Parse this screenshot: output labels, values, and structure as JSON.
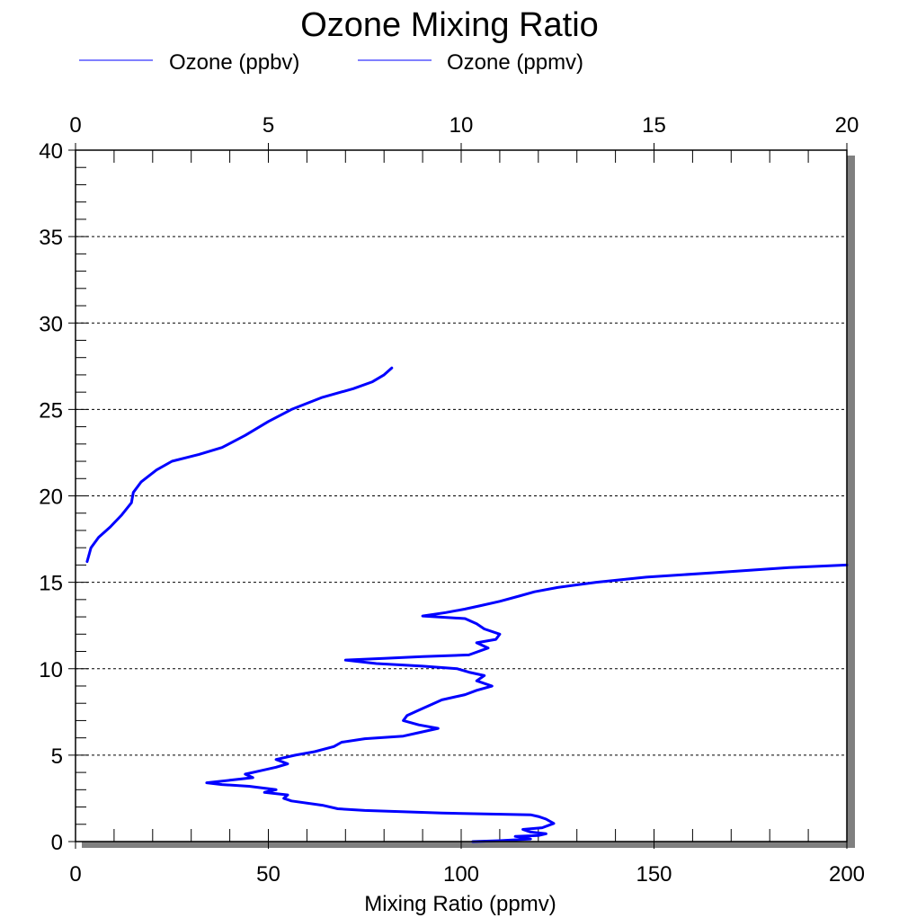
{
  "chart_data": {
    "type": "line",
    "title": "Ozone Mixing Ratio",
    "xlabel": "Mixing Ratio (ppmv)",
    "ylabel": "",
    "x_bottom": {
      "lim": [
        0,
        200
      ],
      "ticks": [
        0,
        50,
        100,
        150,
        200
      ],
      "tick_labels": [
        "0",
        "50",
        "100",
        "150",
        "200"
      ]
    },
    "x_top": {
      "lim": [
        0,
        20
      ],
      "ticks": [
        0,
        5,
        10,
        15,
        20
      ],
      "tick_labels": [
        "0",
        "5",
        "10",
        "15",
        "20"
      ]
    },
    "y": {
      "lim": [
        0,
        40
      ],
      "ticks": [
        0,
        5,
        10,
        15,
        20,
        25,
        30,
        35,
        40
      ],
      "tick_labels": [
        "0",
        "5",
        "10",
        "15",
        "20",
        "25",
        "30",
        "35",
        "40"
      ]
    },
    "grid": "horizontal dotted at y = 5, 10, 15, 20, 25, 30, 35",
    "legend_position": "top",
    "series": [
      {
        "name": "Ozone (ppbv)",
        "axis": "bottom",
        "color": "#0000ff",
        "points": [
          [
            103,
            0.0
          ],
          [
            110,
            0.05
          ],
          [
            118,
            0.15
          ],
          [
            114,
            0.3
          ],
          [
            120,
            0.35
          ],
          [
            122,
            0.45
          ],
          [
            118,
            0.55
          ],
          [
            116,
            0.7
          ],
          [
            121,
            0.8
          ],
          [
            124,
            1.05
          ],
          [
            122,
            1.3
          ],
          [
            120,
            1.45
          ],
          [
            118,
            1.55
          ],
          [
            95,
            1.65
          ],
          [
            75,
            1.8
          ],
          [
            68,
            1.9
          ],
          [
            64,
            2.1
          ],
          [
            56,
            2.35
          ],
          [
            54,
            2.5
          ],
          [
            55,
            2.7
          ],
          [
            49,
            2.85
          ],
          [
            52,
            3.0
          ],
          [
            45,
            3.2
          ],
          [
            38,
            3.3
          ],
          [
            34,
            3.4
          ],
          [
            40,
            3.55
          ],
          [
            46,
            3.7
          ],
          [
            44,
            3.9
          ],
          [
            48,
            4.1
          ],
          [
            52,
            4.3
          ],
          [
            55,
            4.5
          ],
          [
            52,
            4.75
          ],
          [
            57,
            5.0
          ],
          [
            62,
            5.2
          ],
          [
            67,
            5.5
          ],
          [
            69,
            5.75
          ],
          [
            75,
            5.95
          ],
          [
            85,
            6.1
          ],
          [
            89,
            6.3
          ],
          [
            94,
            6.55
          ],
          [
            89,
            6.75
          ],
          [
            85,
            7.0
          ],
          [
            86,
            7.3
          ],
          [
            89,
            7.6
          ],
          [
            92,
            7.9
          ],
          [
            95,
            8.2
          ],
          [
            101,
            8.5
          ],
          [
            104,
            8.75
          ],
          [
            108,
            9.0
          ],
          [
            104,
            9.3
          ],
          [
            106,
            9.6
          ],
          [
            102,
            9.8
          ],
          [
            99,
            10.0
          ],
          [
            90,
            10.15
          ],
          [
            78,
            10.3
          ],
          [
            70,
            10.5
          ],
          [
            80,
            10.6
          ],
          [
            90,
            10.7
          ],
          [
            102,
            10.8
          ],
          [
            107,
            11.2
          ],
          [
            104,
            11.5
          ],
          [
            109,
            11.7
          ],
          [
            110,
            12.0
          ],
          [
            106,
            12.3
          ],
          [
            104,
            12.6
          ],
          [
            101,
            12.9
          ],
          [
            90,
            13.05
          ],
          [
            96,
            13.25
          ],
          [
            101,
            13.45
          ],
          [
            105,
            13.65
          ],
          [
            110,
            13.9
          ],
          [
            115,
            14.2
          ],
          [
            119,
            14.45
          ],
          [
            125,
            14.7
          ],
          [
            135,
            15.0
          ],
          [
            148,
            15.3
          ],
          [
            165,
            15.55
          ],
          [
            185,
            15.85
          ],
          [
            200,
            16.0
          ]
        ]
      },
      {
        "name": "Ozone (ppmv)",
        "axis": "top",
        "color": "#0000ff",
        "points": [
          [
            0.3,
            16.2
          ],
          [
            0.4,
            17.0
          ],
          [
            0.6,
            17.6
          ],
          [
            0.9,
            18.2
          ],
          [
            1.2,
            18.9
          ],
          [
            1.45,
            19.6
          ],
          [
            1.5,
            20.2
          ],
          [
            1.7,
            20.8
          ],
          [
            2.1,
            21.5
          ],
          [
            2.5,
            22.0
          ],
          [
            3.2,
            22.4
          ],
          [
            3.8,
            22.8
          ],
          [
            4.4,
            23.5
          ],
          [
            5.0,
            24.3
          ],
          [
            5.6,
            25.0
          ],
          [
            6.4,
            25.7
          ],
          [
            7.2,
            26.2
          ],
          [
            7.7,
            26.6
          ],
          [
            8.0,
            27.0
          ],
          [
            8.2,
            27.4
          ]
        ]
      }
    ]
  },
  "legend": [
    {
      "label": "Ozone (ppbv)",
      "color": "#0000ff"
    },
    {
      "label": "Ozone (ppmv)",
      "color": "#0000ff"
    }
  ],
  "colors": {
    "series": "#0000ff",
    "frame": "#000000",
    "shadow": "#808080",
    "grid": "#000000"
  }
}
